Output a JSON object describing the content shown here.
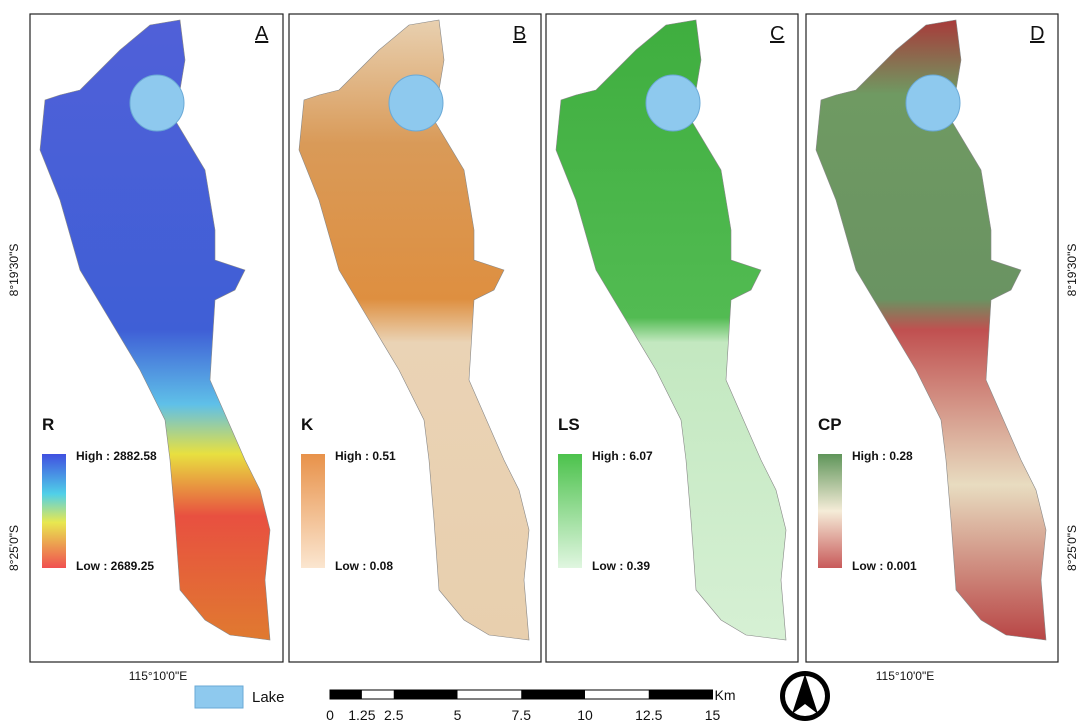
{
  "panels": [
    {
      "letter": "A",
      "legend": {
        "title": "R",
        "high": "High : 2882.58",
        "low": "Low : 2689.25"
      }
    },
    {
      "letter": "B",
      "legend": {
        "title": "K",
        "high": "High : 0.51",
        "low": "Low : 0.08"
      }
    },
    {
      "letter": "C",
      "legend": {
        "title": "LS",
        "high": "High : 6.07",
        "low": "Low : 0.39"
      }
    },
    {
      "letter": "D",
      "legend": {
        "title": "CP",
        "high": "High : 0.28",
        "low": "Low : 0.001"
      }
    }
  ],
  "coordinates": {
    "left": [
      "8°19'30\"S",
      "8°25'0\"S"
    ],
    "right": [
      "8°19'30\"S",
      "8°25'0\"S"
    ],
    "bottom": [
      "115°10'0\"E",
      "115°10'0\"E"
    ]
  },
  "lake_legend": "Lake",
  "scale_bar": {
    "labels": [
      "0",
      "1.25",
      "2.5",
      "5",
      "7.5",
      "10",
      "12.5",
      "15"
    ],
    "unit": "Km"
  }
}
